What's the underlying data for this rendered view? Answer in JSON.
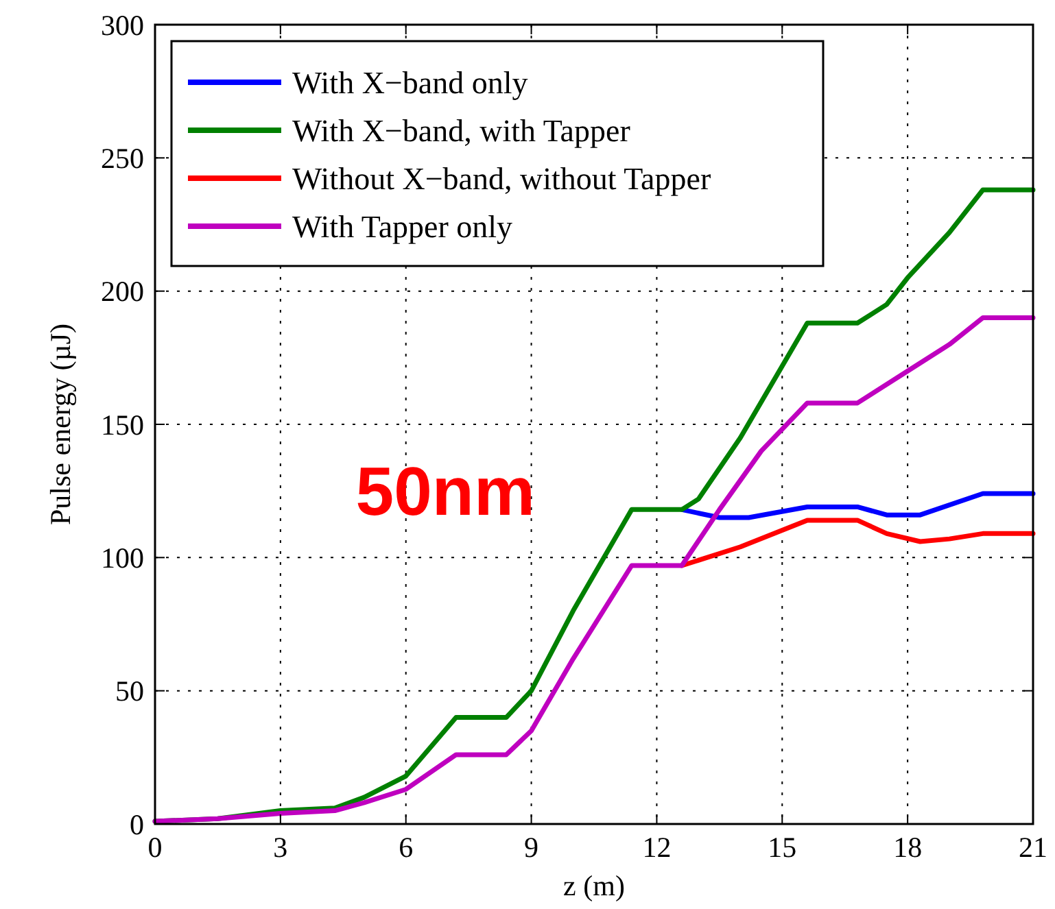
{
  "chart_data": {
    "type": "line",
    "xlabel": "z (m)",
    "ylabel": "Pulse energy (µJ)",
    "xlim": [
      0,
      21
    ],
    "xticks": [
      0,
      3,
      6,
      9,
      12,
      15,
      18,
      21
    ],
    "ylim": [
      0,
      300
    ],
    "yticks": [
      0,
      50,
      100,
      150,
      200,
      250,
      300
    ],
    "grid": true,
    "legend": "top left",
    "line_style": "solid",
    "marker": "none",
    "annotations": [
      "50nm"
    ],
    "series": [
      {
        "name": "With X−band only",
        "color": "#0000ff",
        "x": [
          12.6,
          13.5,
          14.2,
          15.6,
          16.8,
          17.5,
          18.3,
          19.8,
          21
        ],
        "values": [
          118,
          115,
          115,
          119,
          119,
          116,
          116,
          124,
          124
        ]
      },
      {
        "name": "With X−band, with Tapper",
        "color": "#008000",
        "x": [
          0,
          1.5,
          3,
          4.3,
          5,
          6,
          7.2,
          8.4,
          9,
          10,
          11.4,
          12.6,
          13,
          14,
          15.6,
          16.8,
          17.5,
          18,
          19,
          19.8,
          21
        ],
        "values": [
          1,
          2,
          5,
          6,
          10,
          18,
          40,
          40,
          50,
          80,
          118,
          118,
          122,
          145,
          188,
          188,
          195,
          205,
          222,
          238,
          238
        ]
      },
      {
        "name": "Without X−band, without Tapper",
        "color": "#ff0000",
        "x": [
          12.6,
          14,
          15.6,
          16.8,
          17.5,
          18.3,
          19,
          19.8,
          21
        ],
        "values": [
          97,
          104,
          114,
          114,
          109,
          106,
          107,
          109,
          109
        ]
      },
      {
        "name": "With Tapper only",
        "color": "#bf00bf",
        "x": [
          0,
          1.5,
          3,
          4.3,
          5,
          6,
          7.2,
          8.4,
          9,
          10,
          11.4,
          12.6,
          13.5,
          14.5,
          15.6,
          16.8,
          18,
          19,
          19.8,
          21
        ],
        "values": [
          1,
          2,
          4,
          5,
          8,
          13,
          26,
          26,
          35,
          62,
          97,
          97,
          118,
          140,
          158,
          158,
          170,
          180,
          190,
          190
        ]
      }
    ]
  }
}
